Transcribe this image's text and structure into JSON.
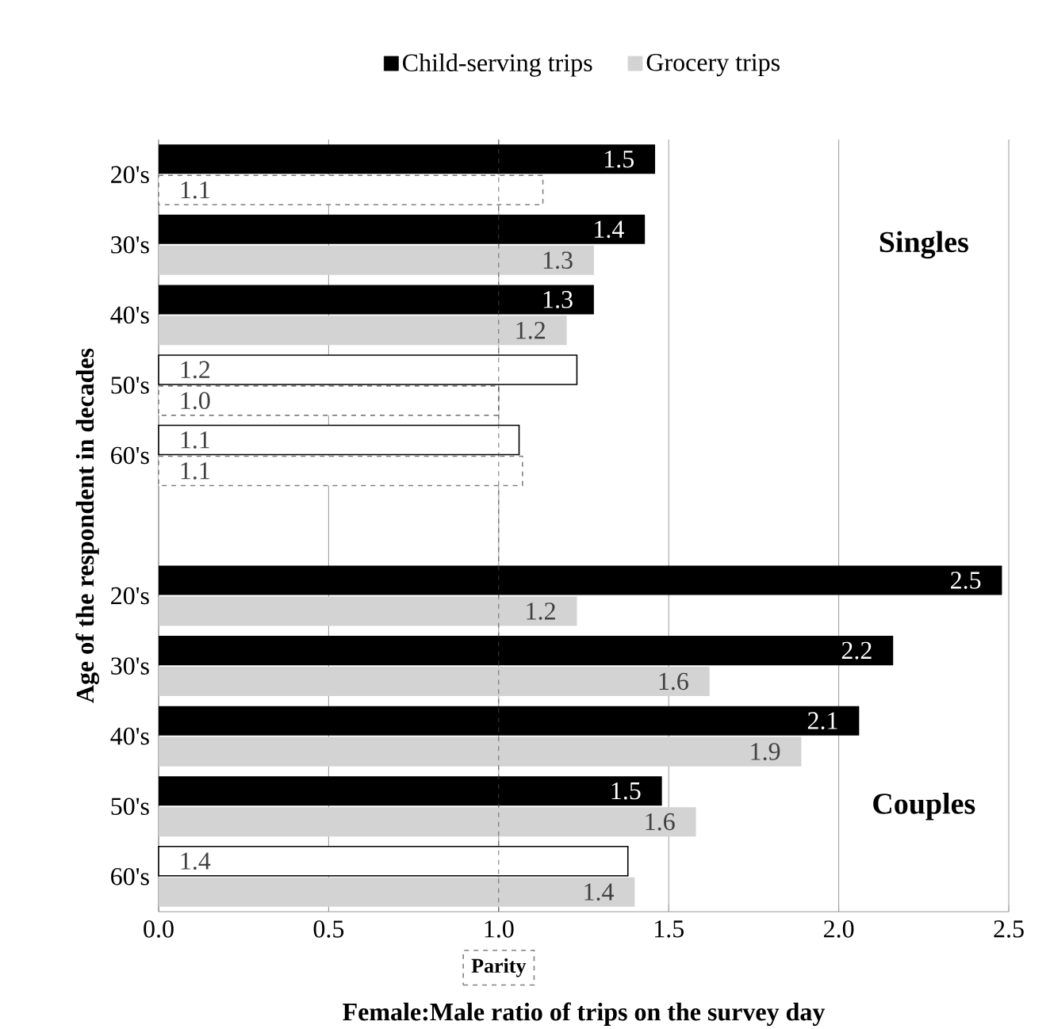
{
  "chart_data": {
    "type": "bar",
    "orientation": "horizontal",
    "xlabel": "Female:Male ratio of trips on the survey day",
    "ylabel": "Age of the respondent in decades",
    "categories": [
      "20's",
      "30's",
      "40's",
      "50's",
      "60's",
      null,
      "20's",
      "30's",
      "40's",
      "50's",
      "60's"
    ],
    "series": [
      {
        "name": "Child-serving trips",
        "color": "#000000",
        "line_style": "solid",
        "values": [
          1.46,
          1.43,
          1.28,
          1.23,
          1.06,
          null,
          2.48,
          2.16,
          2.06,
          1.48,
          1.38
        ],
        "colors": [
          "#000000",
          "#000000",
          "#000000",
          "#ffffff",
          "#ffffff",
          null,
          "#000000",
          "#000000",
          "#000000",
          "#000000",
          "#ffffff"
        ],
        "value_labels": [
          "1.5",
          "1.4",
          "1.3",
          "1.2",
          "1.1",
          null,
          "2.5",
          "2.2",
          "2.1",
          "1.5",
          "1.4"
        ]
      },
      {
        "name": "Grocery trips",
        "color": "#d3d3d3",
        "line_style": "dashed",
        "values": [
          1.13,
          1.28,
          1.2,
          1.0,
          1.07,
          null,
          1.23,
          1.62,
          1.89,
          1.58,
          1.4
        ],
        "colors": [
          "#ffffff",
          "#d3d3d3",
          "#d3d3d3",
          "#ffffff",
          "#ffffff",
          null,
          "#d3d3d3",
          "#d3d3d3",
          "#d3d3d3",
          "#d3d3d3",
          "#d3d3d3"
        ],
        "value_labels": [
          "1.1",
          "1.3",
          "1.2",
          "1.0",
          "1.1",
          null,
          "1.2",
          "1.6",
          "1.9",
          "1.6",
          "1.4"
        ]
      }
    ],
    "xlim": [
      0,
      2.5
    ],
    "xticks": [
      {
        "value": 0,
        "label": "0.0"
      },
      {
        "value": 0.5,
        "label": "0.5"
      },
      {
        "value": 1,
        "label": "1.0"
      },
      {
        "value": 1.5,
        "label": "1.5"
      },
      {
        "value": 2,
        "label": "2.0"
      },
      {
        "value": 2.5,
        "label": "2.5"
      }
    ],
    "grid": "x",
    "legend": "top",
    "ref_lines": [
      {
        "axis": "x",
        "value": 1,
        "label": "Parity",
        "line_style": "dashed"
      }
    ],
    "annotations": [
      "Singles",
      "Couples"
    ]
  }
}
